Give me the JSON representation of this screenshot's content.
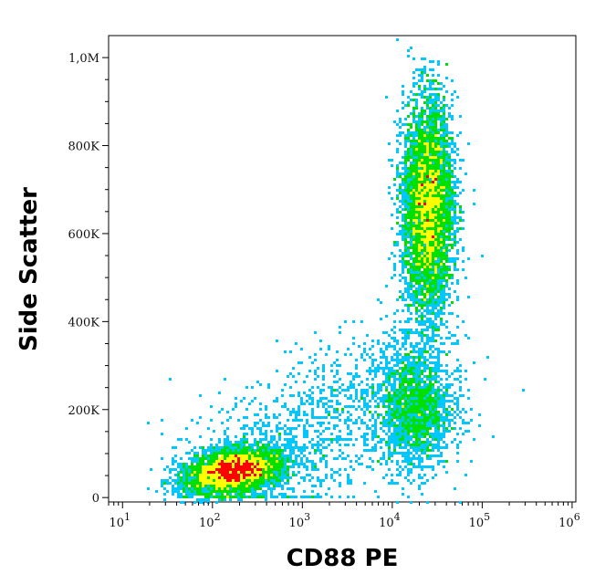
{
  "chart_data": {
    "type": "scatter",
    "title": "",
    "xlabel": "CD88 PE",
    "ylabel": "Side Scatter",
    "x_scale": "log",
    "xlim": [
      7,
      1100000
    ],
    "ylim": [
      -10000,
      1050000
    ],
    "grid": false,
    "legend": "none",
    "color_scale": "density (blue-cyan-green-yellow-red)",
    "x_ticks": [
      {
        "value": 10,
        "base": "10",
        "exp": "1"
      },
      {
        "value": 100,
        "base": "10",
        "exp": "2"
      },
      {
        "value": 1000,
        "base": "10",
        "exp": "3"
      },
      {
        "value": 10000,
        "base": "10",
        "exp": "4"
      },
      {
        "value": 100000,
        "base": "10",
        "exp": "5"
      },
      {
        "value": 1000000,
        "base": "10",
        "exp": "6"
      }
    ],
    "y_ticks": [
      {
        "value": 0,
        "label": "0"
      },
      {
        "value": 200000,
        "label": "200K"
      },
      {
        "value": 400000,
        "label": "400K"
      },
      {
        "value": 600000,
        "label": "600K"
      },
      {
        "value": 800000,
        "label": "800K"
      },
      {
        "value": 1000000,
        "label": "1,0M"
      }
    ],
    "populations": [
      {
        "x_center": 170,
        "y_center": 60000,
        "x_spread_decades": 0.25,
        "y_spread": 25000,
        "peak_density": "red"
      },
      {
        "x_center": 25000,
        "y_center": 660000,
        "x_spread_decades": 0.14,
        "y_spread": 120000,
        "peak_density": "green"
      },
      {
        "x_center": 18000,
        "y_center": 200000,
        "x_spread_decades": 0.2,
        "y_spread": 70000,
        "peak_density": "blue"
      }
    ],
    "colors": {
      "low": "#0000ff",
      "mid_low": "#00c8ff",
      "mid": "#00e000",
      "mid_high": "#ffff00",
      "high": "#ff0000"
    }
  }
}
